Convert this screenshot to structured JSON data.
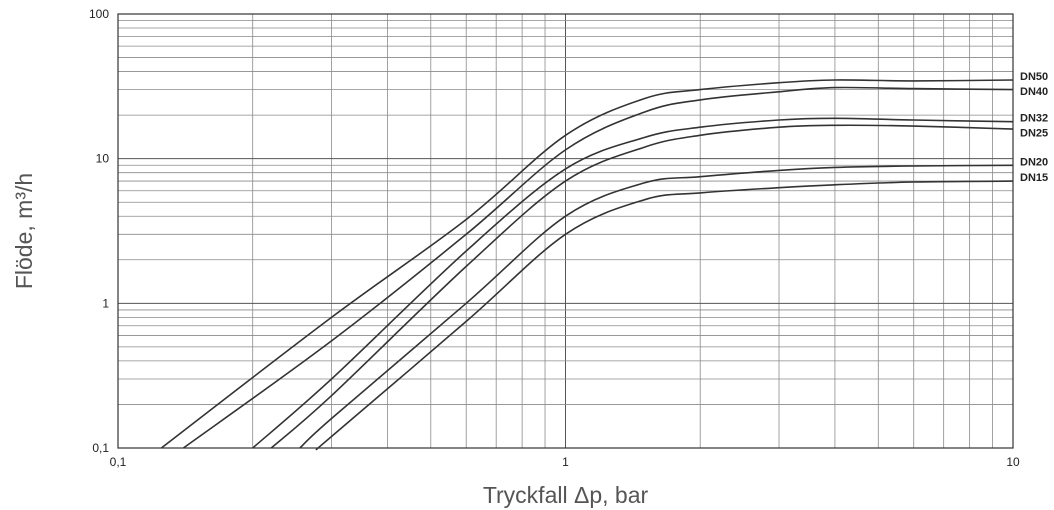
{
  "chart_data": {
    "type": "line",
    "xlabel": "Tryckfall Δp, bar",
    "ylabel": "Flöde, m³/h",
    "x_scale": "log",
    "y_scale": "log",
    "xlim": [
      0.1,
      10
    ],
    "ylim": [
      0.1,
      100
    ],
    "grid": true,
    "legend": "inline labels at right end",
    "x_ticks": [
      {
        "value": 0.1,
        "label": "0,1"
      },
      {
        "value": 1,
        "label": "1"
      },
      {
        "value": 10,
        "label": "10"
      }
    ],
    "y_ticks": [
      {
        "value": 0.1,
        "label": "0,1"
      },
      {
        "value": 1,
        "label": "1"
      },
      {
        "value": 10,
        "label": "10"
      },
      {
        "value": 100,
        "label": "100"
      }
    ],
    "series": [
      {
        "name": "DN50",
        "points": [
          [
            0.125,
            0.1
          ],
          [
            0.3,
            0.8
          ],
          [
            0.6,
            3.8
          ],
          [
            1.0,
            14.5
          ],
          [
            1.5,
            26
          ],
          [
            2.0,
            30
          ],
          [
            3.0,
            33.5
          ],
          [
            4.0,
            35
          ],
          [
            6.0,
            34.5
          ],
          [
            10,
            35
          ]
        ]
      },
      {
        "name": "DN40",
        "points": [
          [
            0.14,
            0.1
          ],
          [
            0.3,
            0.55
          ],
          [
            0.6,
            3.0
          ],
          [
            1.0,
            11.5
          ],
          [
            1.5,
            21
          ],
          [
            2.0,
            25.5
          ],
          [
            3.0,
            29
          ],
          [
            4.0,
            31
          ],
          [
            6.0,
            30.5
          ],
          [
            10,
            30
          ]
        ]
      },
      {
        "name": "DN32",
        "points": [
          [
            0.2,
            0.1
          ],
          [
            0.3,
            0.3
          ],
          [
            0.6,
            2.3
          ],
          [
            1.0,
            8.5
          ],
          [
            1.5,
            14
          ],
          [
            2.0,
            16.5
          ],
          [
            3.0,
            18.5
          ],
          [
            4.0,
            19
          ],
          [
            6.0,
            18.5
          ],
          [
            10,
            18
          ]
        ]
      },
      {
        "name": "DN25",
        "points": [
          [
            0.22,
            0.1
          ],
          [
            0.3,
            0.23
          ],
          [
            0.6,
            1.8
          ],
          [
            1.0,
            7
          ],
          [
            1.5,
            12
          ],
          [
            2.0,
            14.5
          ],
          [
            3.0,
            16.5
          ],
          [
            4.0,
            17
          ],
          [
            6.0,
            16.8
          ],
          [
            10,
            16
          ]
        ]
      },
      {
        "name": "DN20",
        "points": [
          [
            0.255,
            0.1
          ],
          [
            0.3,
            0.16
          ],
          [
            0.6,
            1.0
          ],
          [
            1.0,
            4
          ],
          [
            1.5,
            6.8
          ],
          [
            2.0,
            7.5
          ],
          [
            3.0,
            8.3
          ],
          [
            4.0,
            8.7
          ],
          [
            6.0,
            8.9
          ],
          [
            10,
            9
          ]
        ]
      },
      {
        "name": "DN15",
        "points": [
          [
            0.28,
            0.1
          ],
          [
            0.3,
            0.12
          ],
          [
            0.6,
            0.75
          ],
          [
            1.0,
            3.0
          ],
          [
            1.5,
            5.2
          ],
          [
            2.0,
            5.8
          ],
          [
            3.0,
            6.3
          ],
          [
            4.0,
            6.6
          ],
          [
            6.0,
            6.9
          ],
          [
            10,
            7
          ]
        ]
      }
    ]
  }
}
